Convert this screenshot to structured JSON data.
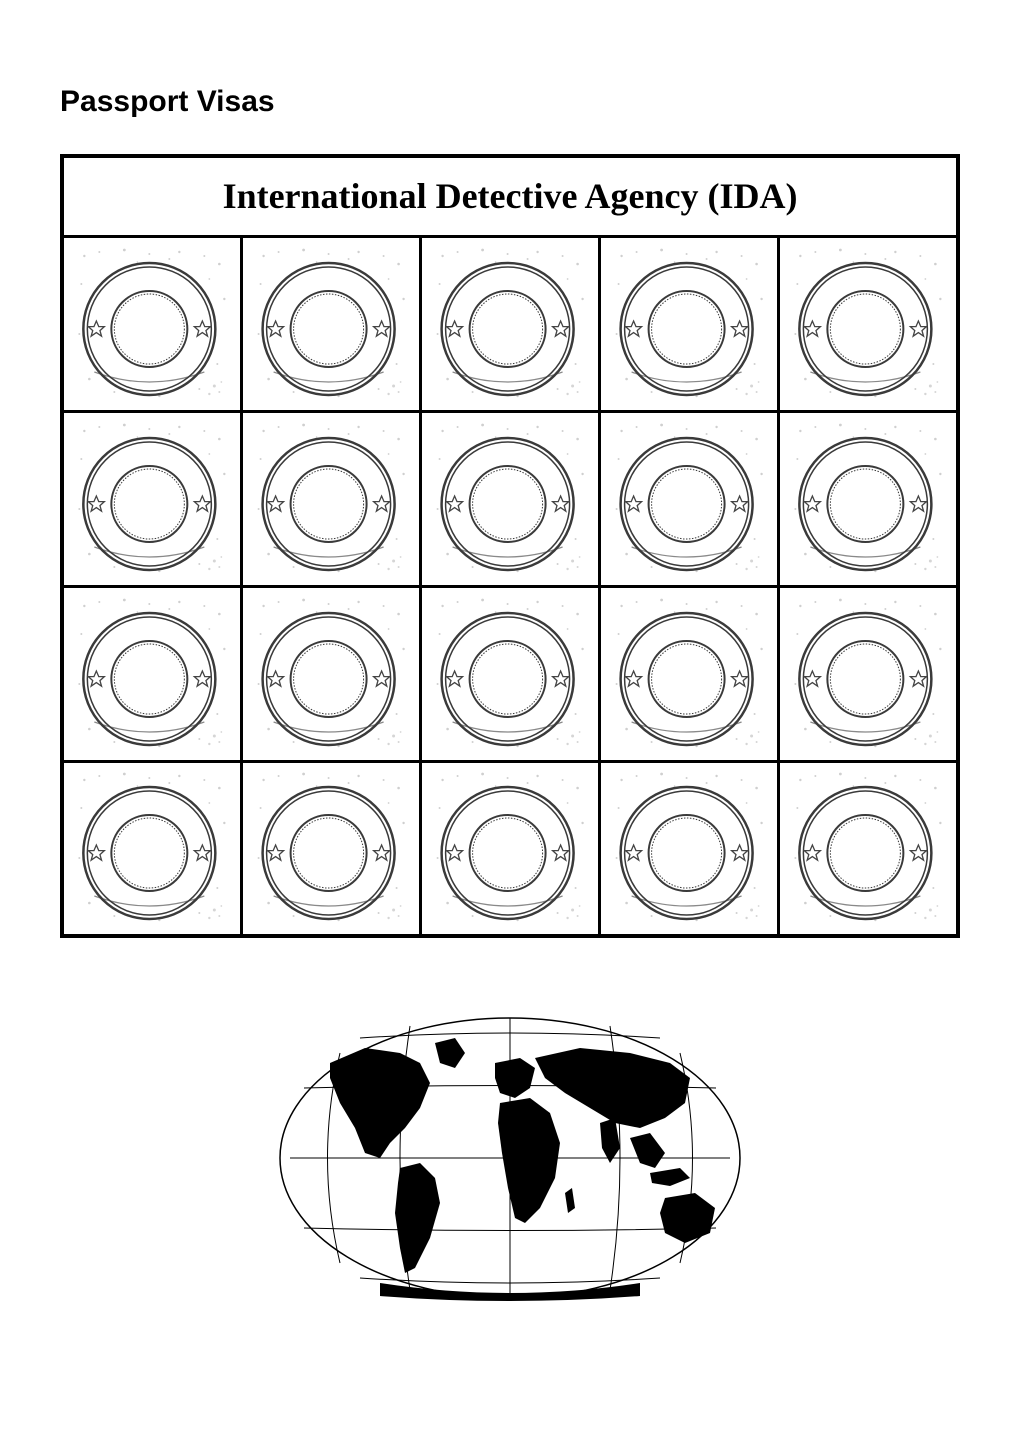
{
  "page_title": "Passport Visas",
  "table_header": "International Detective Agency (IDA)",
  "grid": {
    "rows": 4,
    "cols": 5
  },
  "stamp": {
    "outer_stroke": "#3a3a3a",
    "inner_stroke": "#3a3a3a",
    "star_color": "#555555",
    "texture_color": "#888888",
    "background": "#ffffff"
  },
  "world_map": {
    "land_color": "#000000",
    "grid_color": "#000000",
    "background": "#ffffff"
  }
}
